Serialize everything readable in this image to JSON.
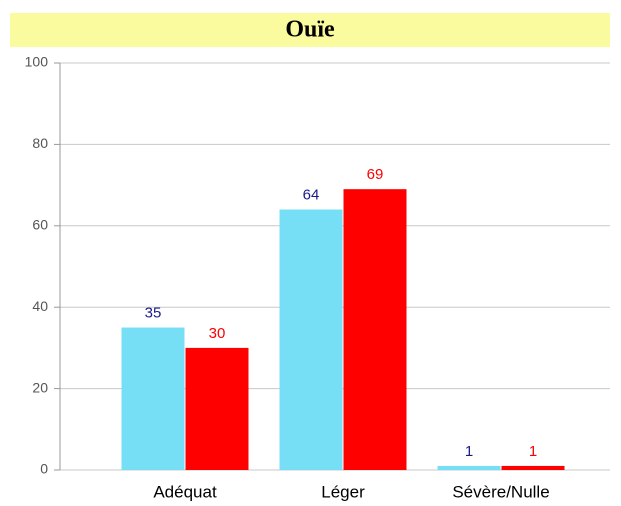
{
  "chart_data": {
    "type": "bar",
    "title": "Ouïe",
    "categories": [
      "Adéquat",
      "Léger",
      "Sévère/Nulle"
    ],
    "series": [
      {
        "color": "#77dff5",
        "label_color": "#1a1a8c",
        "values": [
          35,
          64,
          1
        ]
      },
      {
        "color": "#ff0000",
        "label_color": "#ff0000",
        "values": [
          30,
          69,
          1
        ]
      }
    ],
    "ylim": [
      0,
      100
    ],
    "yticks": [
      0,
      20,
      40,
      60,
      80,
      100
    ],
    "grid": true
  }
}
